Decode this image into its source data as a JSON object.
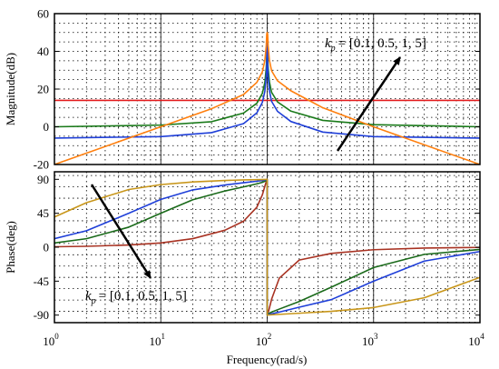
{
  "chart_data": [
    {
      "type": "line",
      "xscale": "log",
      "xlim": [
        1,
        10000
      ],
      "ylim": [
        -20,
        60
      ],
      "ylabel": "Magnitude(dB)",
      "yticks": [
        -20,
        0,
        20,
        40,
        60
      ],
      "grid": true,
      "series": [
        {
          "color": "#e31a1c",
          "x": [
            1,
            10,
            30,
            60,
            80,
            90,
            95,
            98,
            99,
            100,
            101,
            102,
            105,
            110,
            125,
            167,
            333,
            1000,
            10000
          ],
          "y": [
            14,
            14,
            14,
            14,
            14,
            14,
            14,
            14,
            14,
            14,
            14,
            14,
            14,
            14,
            14,
            14,
            14,
            14,
            14
          ]
        },
        {
          "color": "#1a7a1a",
          "x": [
            1,
            10,
            30,
            60,
            80,
            90,
            95,
            98,
            99,
            100,
            101,
            102,
            105,
            110,
            125,
            167,
            333,
            1000,
            10000
          ],
          "y": [
            0,
            0.9,
            2.7,
            7.3,
            12.5,
            17.7,
            23.4,
            31.3,
            37.3,
            50,
            37.3,
            31.4,
            23.7,
            18.3,
            13.2,
            8.3,
            3.4,
            1.1,
            0
          ]
        },
        {
          "color": "#1f3fd8",
          "x": [
            1,
            10,
            30,
            60,
            80,
            90,
            95,
            98,
            99,
            100,
            101,
            102,
            105,
            110,
            125,
            167,
            333,
            1000,
            10000
          ],
          "y": [
            -6,
            -5.2,
            -3.1,
            1.7,
            7.4,
            12.9,
            18.7,
            26.6,
            32.7,
            50,
            32.7,
            26.8,
            19,
            13.5,
            8.2,
            2.8,
            -2.8,
            -5.2,
            -6
          ]
        },
        {
          "color": "#ff7f0e",
          "x": [
            1,
            10,
            30,
            60,
            80,
            90,
            95,
            98,
            99,
            100,
            101,
            102,
            105,
            110,
            125,
            167,
            333,
            1000,
            10000
          ],
          "y": [
            -20,
            0,
            9.6,
            17.1,
            23.6,
            29.1,
            35,
            42.9,
            49,
            50,
            49,
            43.1,
            35.2,
            29.7,
            24.4,
            19.1,
            10.1,
            0,
            -20
          ]
        }
      ],
      "annotation": {
        "text_prefix": "k",
        "subscript": "p",
        "text": "= [0.1,  0.5,  1,  5]"
      }
    },
    {
      "type": "line",
      "xscale": "log",
      "xlim": [
        1,
        10000
      ],
      "ylim": [
        -100,
        100
      ],
      "xlabel": "Frequency(rad/s)",
      "ylabel": "Phase(deg)",
      "xticks": [
        1,
        10,
        100,
        1000,
        10000
      ],
      "xtick_labels": [
        [
          "10",
          "0"
        ],
        [
          "10",
          "1"
        ],
        [
          "10",
          "2"
        ],
        [
          "10",
          "3"
        ],
        [
          "10",
          "4"
        ]
      ],
      "yticks": [
        -90,
        -45,
        0,
        45,
        90
      ],
      "grid": true,
      "series": [
        {
          "color": "#a83222",
          "x": [
            1,
            2,
            5,
            10,
            20,
            40,
            60,
            80,
            90,
            97,
            99.9,
            100.1,
            103,
            110,
            130,
            200,
            400,
            1000,
            3000,
            10000
          ],
          "y": [
            0.6,
            1.2,
            2.9,
            5.7,
            11.4,
            22.5,
            34.5,
            53.1,
            69.3,
            85,
            89,
            -89,
            -85,
            -69,
            -41,
            -17,
            -8.2,
            -3.3,
            -1.1,
            -0.3
          ]
        },
        {
          "color": "#1a6a1a",
          "x": [
            1,
            2,
            5,
            10,
            20,
            40,
            60,
            80,
            90,
            97,
            99.9,
            100.1,
            103,
            110,
            130,
            200,
            400,
            1000,
            3000,
            10000
          ],
          "y": [
            5.7,
            11.3,
            26.6,
            45,
            63,
            74.5,
            80,
            84,
            86,
            88,
            89.5,
            -89.5,
            -88,
            -86,
            -82,
            -72,
            -53,
            -27,
            -9.5,
            -2.9
          ]
        },
        {
          "color": "#1f3fd8",
          "x": [
            1,
            2,
            5,
            10,
            20,
            40,
            60,
            80,
            90,
            97,
            99.9,
            100.1,
            103,
            110,
            130,
            200,
            400,
            1000,
            3000,
            10000
          ],
          "y": [
            11.3,
            21.8,
            45,
            63.4,
            76,
            82.5,
            85.5,
            87.5,
            88.5,
            89.3,
            89.8,
            -89.8,
            -89.3,
            -88.3,
            -86,
            -79.5,
            -69.5,
            -45,
            -18.4,
            -5.7
          ]
        },
        {
          "color": "#c8961a",
          "x": [
            1,
            2,
            5,
            10,
            20,
            40,
            60,
            80,
            90,
            97,
            99.9,
            100.1,
            103,
            110,
            130,
            200,
            400,
            1000,
            3000,
            10000
          ],
          "y": [
            40,
            59,
            76.5,
            83,
            86.5,
            88.5,
            89.2,
            89.5,
            89.7,
            89.9,
            90,
            -90,
            -89.9,
            -89.6,
            -89,
            -87.5,
            -85,
            -80,
            -67,
            -40
          ]
        }
      ],
      "annotation": {
        "text_prefix": "k",
        "subscript": "p",
        "text": "= [0.1,  0.5,  1,  5]"
      }
    }
  ]
}
